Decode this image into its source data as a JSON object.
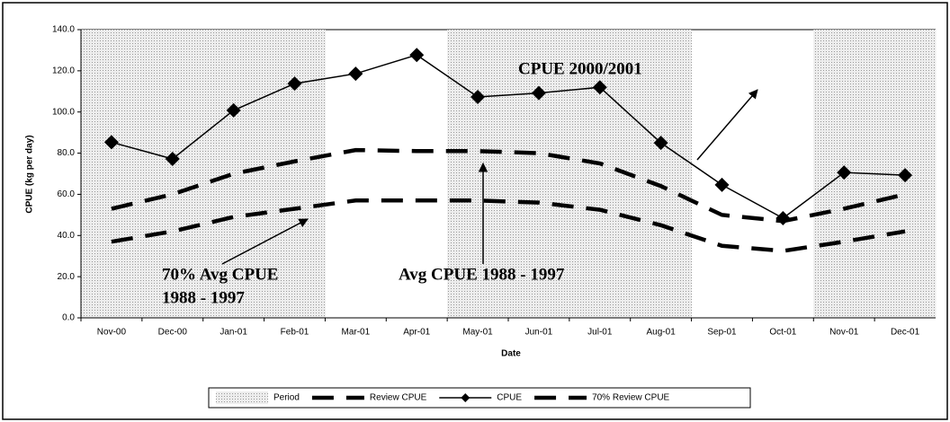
{
  "chart_data": {
    "type": "line",
    "xlabel": "Date",
    "ylabel": "CPUE (kg per day)",
    "categories": [
      "Nov-00",
      "Dec-00",
      "Jan-01",
      "Feb-01",
      "Mar-01",
      "Apr-01",
      "May-01",
      "Jun-01",
      "Jul-01",
      "Aug-01",
      "Sep-01",
      "Oct-01",
      "Nov-01",
      "Dec-01"
    ],
    "series": [
      {
        "name": "Period",
        "kind": "bar",
        "color": "#cfcfcf",
        "values": [
          140,
          140,
          140,
          140,
          0,
          0,
          140,
          140,
          140,
          140,
          0,
          0,
          140,
          140
        ]
      },
      {
        "name": "Review CPUE",
        "kind": "dashed",
        "color": "#000000",
        "values": [
          53,
          60,
          70,
          76,
          81.5,
          81,
          81,
          80,
          75,
          64,
          50,
          47,
          53,
          60
        ]
      },
      {
        "name": "CPUE",
        "kind": "marker",
        "color": "#000000",
        "values": [
          85.3,
          77.2,
          100.8,
          113.8,
          118.6,
          127.7,
          107.3,
          109.2,
          112.0,
          85.0,
          64.6,
          48.4,
          70.6,
          69.3
        ]
      },
      {
        "name": "70% Review CPUE",
        "kind": "dashed",
        "color": "#000000",
        "values": [
          37,
          42,
          49,
          53,
          57,
          57,
          57,
          56,
          52.5,
          45,
          35,
          32.5,
          37,
          42
        ]
      }
    ],
    "ylim": [
      0,
      140
    ],
    "yticks": [
      {
        "value": 0,
        "label": "0.0"
      },
      {
        "value": 20,
        "label": "20.0"
      },
      {
        "value": 40,
        "label": "40.0"
      },
      {
        "value": 60,
        "label": "60.0"
      },
      {
        "value": 80,
        "label": "80.0"
      },
      {
        "value": 100,
        "label": "100.0"
      },
      {
        "value": 120,
        "label": "120.0"
      },
      {
        "value": 140,
        "label": "140.0"
      }
    ],
    "annotations": [
      "CPUE 2000/2001",
      "Avg CPUE 1988 - 1997",
      "70% Avg CPUE",
      "1988 - 1997"
    ],
    "legend": "bottom"
  }
}
